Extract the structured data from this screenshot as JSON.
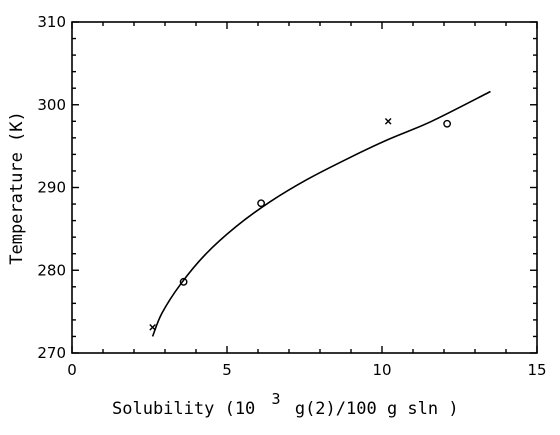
{
  "chart_data": {
    "type": "scatter",
    "xlabel_parts": [
      "Solubility (10",
      "3",
      " g(2)/100 g sln )"
    ],
    "ylabel": "Temperature (K)",
    "xlim": [
      0,
      15
    ],
    "ylim": [
      270,
      310
    ],
    "x_ticks": [
      0,
      5,
      10,
      15
    ],
    "y_ticks": [
      270,
      280,
      290,
      300,
      310
    ],
    "grid": false,
    "series": [
      {
        "marker": "cross",
        "points": [
          {
            "x": 2.6,
            "y": 273.1
          },
          {
            "x": 10.2,
            "y": 298.0
          }
        ]
      },
      {
        "marker": "circle",
        "points": [
          {
            "x": 3.6,
            "y": 278.6
          },
          {
            "x": 6.1,
            "y": 288.1
          },
          {
            "x": 12.1,
            "y": 297.7
          }
        ]
      }
    ],
    "fit_curve": [
      {
        "x": 2.6,
        "y": 272.0
      },
      {
        "x": 2.9,
        "y": 274.8
      },
      {
        "x": 3.5,
        "y": 278.3
      },
      {
        "x": 4.3,
        "y": 281.9
      },
      {
        "x": 5.3,
        "y": 285.3
      },
      {
        "x": 6.4,
        "y": 288.3
      },
      {
        "x": 7.6,
        "y": 291.0
      },
      {
        "x": 8.9,
        "y": 293.5
      },
      {
        "x": 10.2,
        "y": 295.8
      },
      {
        "x": 11.6,
        "y": 298.0
      },
      {
        "x": 13.5,
        "y": 301.6
      }
    ]
  }
}
